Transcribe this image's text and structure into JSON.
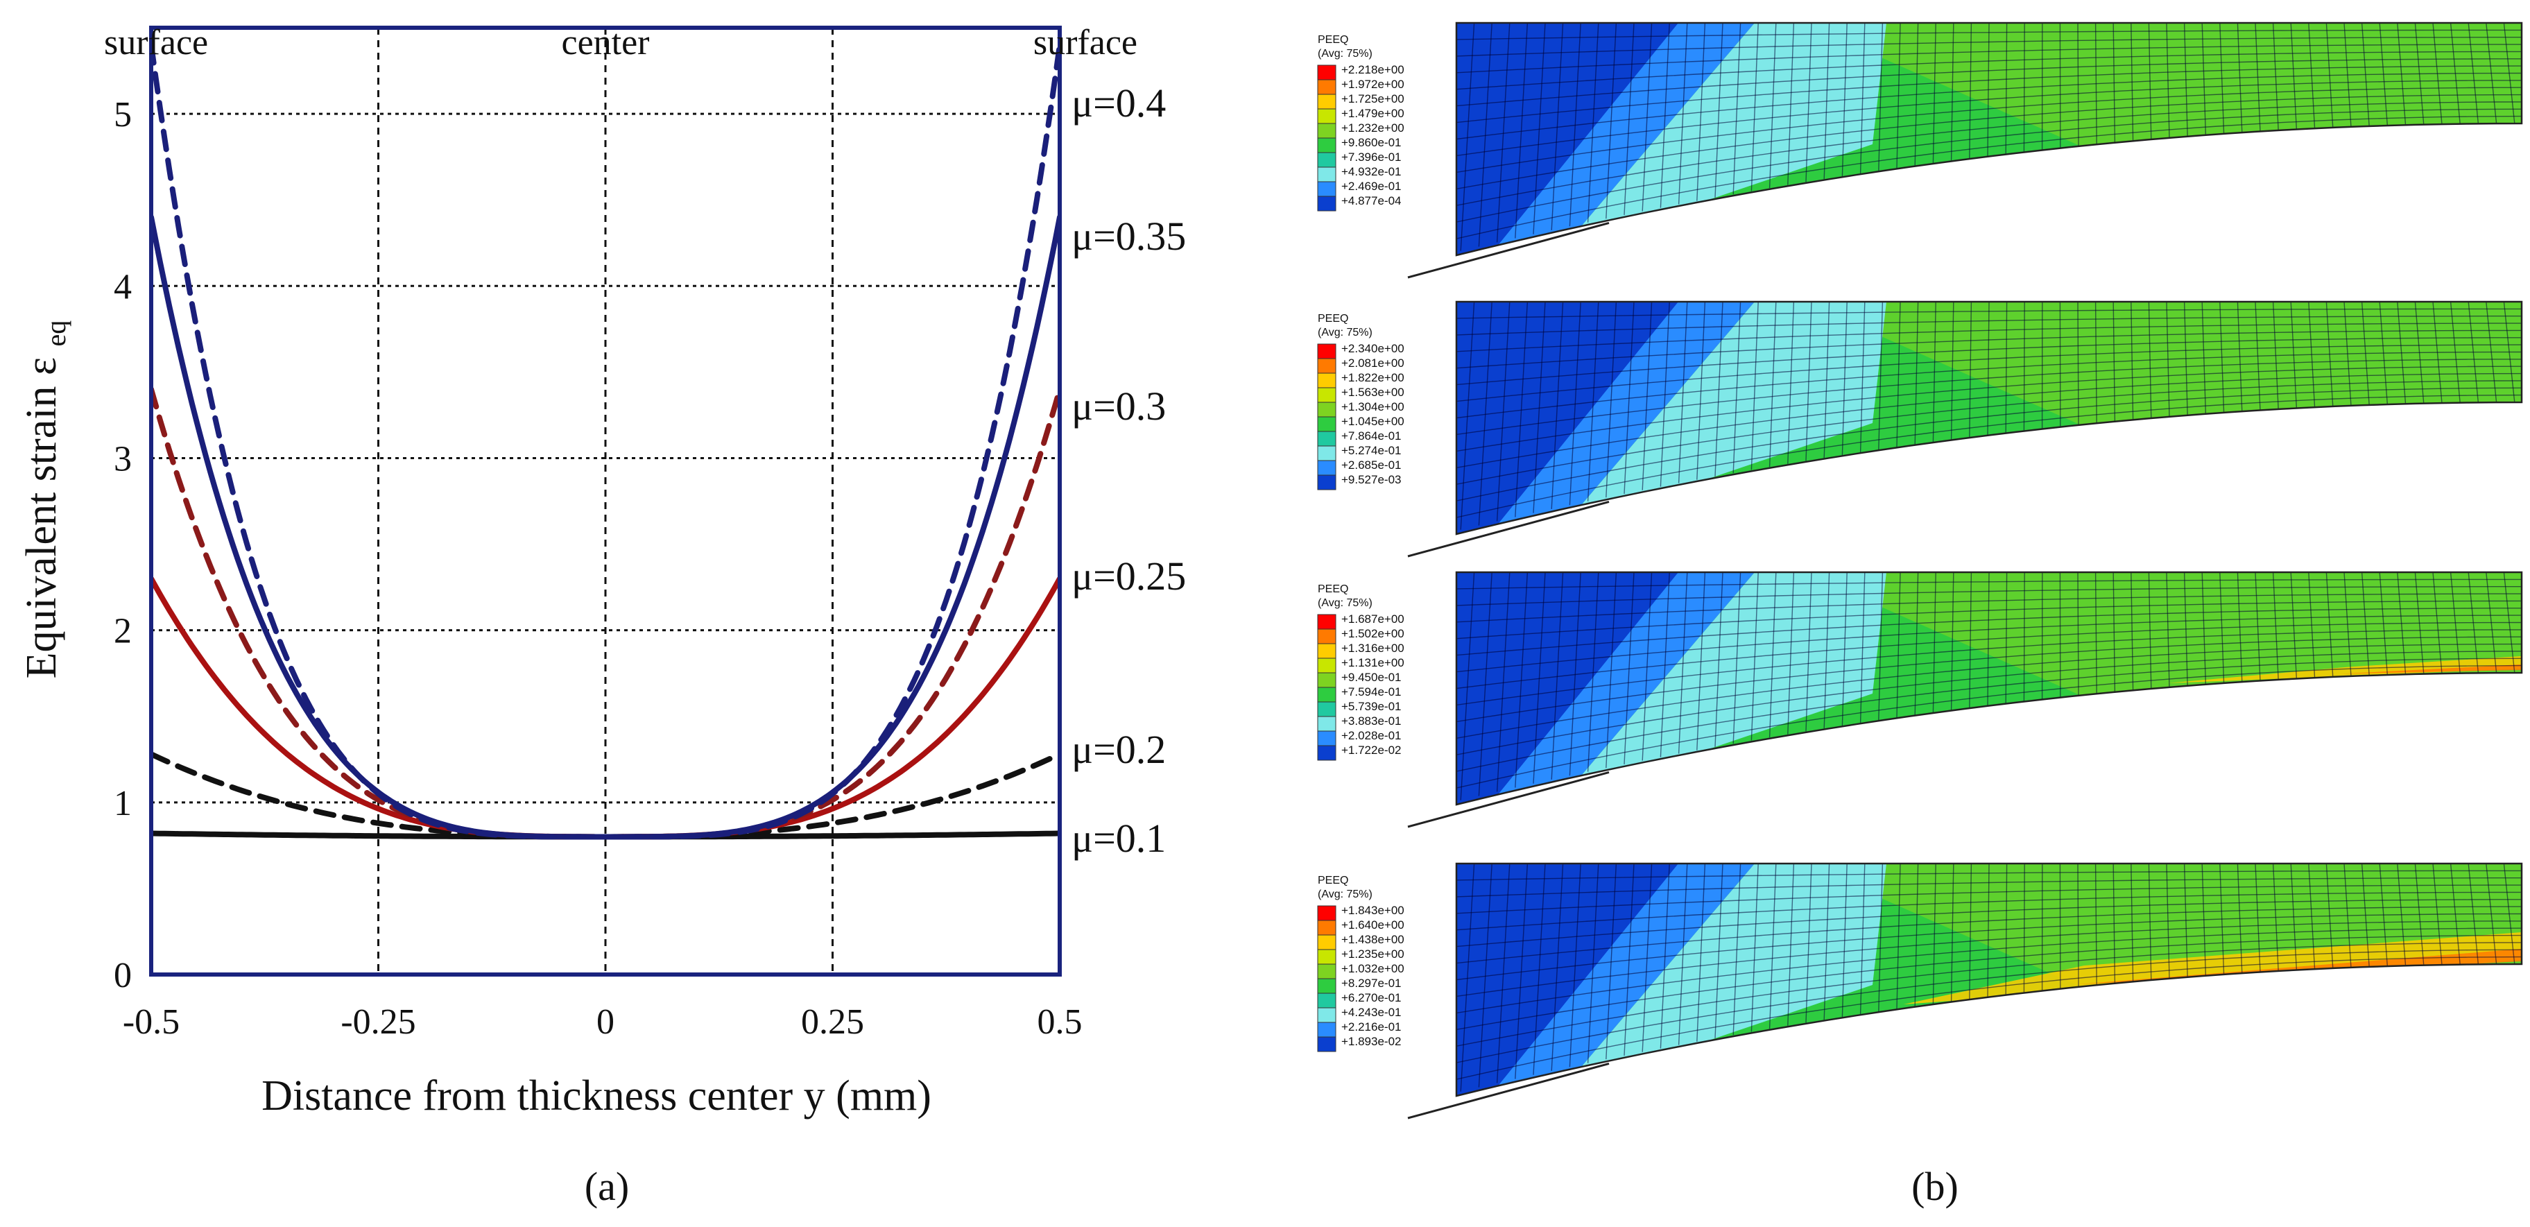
{
  "chart_data": {
    "type": "line",
    "title": "",
    "xlabel": "Distance from thickness center  y (mm)",
    "ylabel_main": "Equivalent strain  ε",
    "ylabel_sub": "eq",
    "xlim": [
      -0.5,
      0.5
    ],
    "ylim": [
      0,
      5.5
    ],
    "xticks": [
      -0.5,
      -0.25,
      0,
      0.25,
      0.5
    ],
    "xtick_labels": [
      "-0.5",
      "-0.25",
      "0",
      "0.25",
      "0.5"
    ],
    "yticks": [
      0,
      1,
      2,
      3,
      4,
      5
    ],
    "ytick_labels": [
      "0",
      "1",
      "2",
      "3",
      "4",
      "5"
    ],
    "grid": true,
    "top_labels": {
      "left": "surface",
      "center": "center",
      "right": "surface"
    },
    "series": [
      {
        "name": "μ=0.1",
        "color": "#111111",
        "dash": "solid",
        "values_at": [
          [
            -0.5,
            0.82
          ],
          [
            0,
            0.8
          ],
          [
            0.5,
            0.82
          ]
        ],
        "end_value": 0.82
      },
      {
        "name": "μ=0.2",
        "color": "#111111",
        "dash": "dashed",
        "values_at": [
          [
            -0.5,
            1.28
          ],
          [
            0,
            0.8
          ],
          [
            0.5,
            1.28
          ]
        ],
        "end_value": 1.28
      },
      {
        "name": "μ=0.25",
        "color": "#aa1111",
        "dash": "solid",
        "values_at": [
          [
            -0.5,
            2.3
          ],
          [
            0,
            0.8
          ],
          [
            0.5,
            2.3
          ]
        ],
        "end_value": 2.3
      },
      {
        "name": "μ=0.3",
        "color": "#8b1a1a",
        "dash": "dashed",
        "values_at": [
          [
            -0.5,
            3.4
          ],
          [
            0,
            0.8
          ],
          [
            0.5,
            3.4
          ]
        ],
        "end_value": 3.4
      },
      {
        "name": "μ=0.35",
        "color": "#1a1f7a",
        "dash": "solid",
        "values_at": [
          [
            -0.5,
            4.4
          ],
          [
            0,
            0.8
          ],
          [
            0.5,
            4.4
          ]
        ],
        "end_value": 4.4
      },
      {
        "name": "μ=0.4",
        "color": "#1a1f7a",
        "dash": "dashed",
        "values_at": [
          [
            -0.5,
            5.4
          ],
          [
            0,
            0.8
          ],
          [
            0.5,
            5.4
          ]
        ],
        "end_value": 5.4
      }
    ]
  },
  "panels": {
    "a_label": "(a)",
    "b_label": "(b)"
  },
  "fem_panels": [
    {
      "title": "PEEQ",
      "subtitle": "(Avg: 75%)",
      "max_fraction": 0.0,
      "legend": [
        "+2.218e+00",
        "+1.972e+00",
        "+1.725e+00",
        "+1.479e+00",
        "+1.232e+00",
        "+9.860e-01",
        "+7.396e-01",
        "+4.932e-01",
        "+2.469e-01",
        "+4.877e-04"
      ]
    },
    {
      "title": "PEEQ",
      "subtitle": "(Avg: 75%)",
      "max_fraction": 0.0,
      "legend": [
        "+2.340e+00",
        "+2.081e+00",
        "+1.822e+00",
        "+1.563e+00",
        "+1.304e+00",
        "+1.045e+00",
        "+7.864e-01",
        "+5.274e-01",
        "+2.685e-01",
        "+9.527e-03"
      ]
    },
    {
      "title": "PEEQ",
      "subtitle": "(Avg: 75%)",
      "max_fraction": 0.45,
      "legend": [
        "+1.687e+00",
        "+1.502e+00",
        "+1.316e+00",
        "+1.131e+00",
        "+9.450e-01",
        "+7.594e-01",
        "+5.739e-01",
        "+3.883e-01",
        "+2.028e-01",
        "+1.722e-02"
      ]
    },
    {
      "title": "PEEQ",
      "subtitle": "(Avg: 75%)",
      "max_fraction": 1.0,
      "legend": [
        "+1.843e+00",
        "+1.640e+00",
        "+1.438e+00",
        "+1.235e+00",
        "+1.032e+00",
        "+8.297e-01",
        "+6.270e-01",
        "+4.243e-01",
        "+2.216e-01",
        "+1.893e-02"
      ]
    }
  ],
  "colors": {
    "axis": "#1a237e",
    "grid": "#111111",
    "legend_scale": [
      "#ff0000",
      "#ff7a00",
      "#ffcc00",
      "#c8e600",
      "#7ed321",
      "#2ecc40",
      "#20c9a0",
      "#7fe8e8",
      "#2a8cff",
      "#0a3fcf"
    ]
  }
}
